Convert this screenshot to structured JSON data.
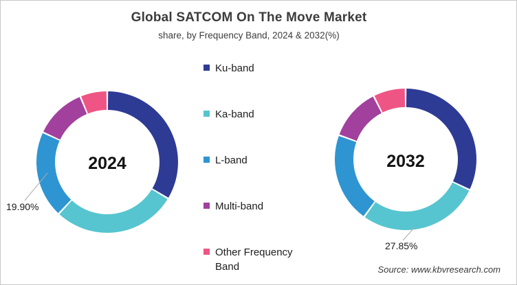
{
  "header": {
    "title": "Global SATCOM On The Move Market",
    "subtitle": "share, by Frequency Band, 2024 & 2032(%)"
  },
  "legend": {
    "items": [
      {
        "label": "Ku-band"
      },
      {
        "label": "Ka-band"
      },
      {
        "label": "L-band"
      },
      {
        "label": "Multi-band"
      },
      {
        "label": "Other Frequency Band"
      }
    ]
  },
  "palette": [
    "#2e3b94",
    "#56c5cf",
    "#2e95d2",
    "#a2409d",
    "#ee5585"
  ],
  "chart_data": [
    {
      "type": "pie",
      "subtype": "donut",
      "year_label": "2024",
      "categories": [
        "Ku-band",
        "Ka-band",
        "L-band",
        "Multi-band",
        "Other Frequency Band"
      ],
      "values": [
        33.6,
        28.4,
        19.9,
        11.9,
        6.2
      ],
      "start_angle_deg": 0,
      "direction": "clockwise",
      "callout": {
        "category": "L-band",
        "text": "19.90%"
      }
    },
    {
      "type": "pie",
      "subtype": "donut",
      "year_label": "2032",
      "categories": [
        "Ku-band",
        "Ka-band",
        "L-band",
        "Multi-band",
        "Other Frequency Band"
      ],
      "values": [
        32.1,
        27.85,
        20.6,
        12.0,
        7.45
      ],
      "start_angle_deg": 0,
      "direction": "clockwise",
      "callout": {
        "category": "Ka-band",
        "text": "27.85%"
      }
    }
  ],
  "footer": {
    "source": "Source: www.kbvresearch.com"
  }
}
